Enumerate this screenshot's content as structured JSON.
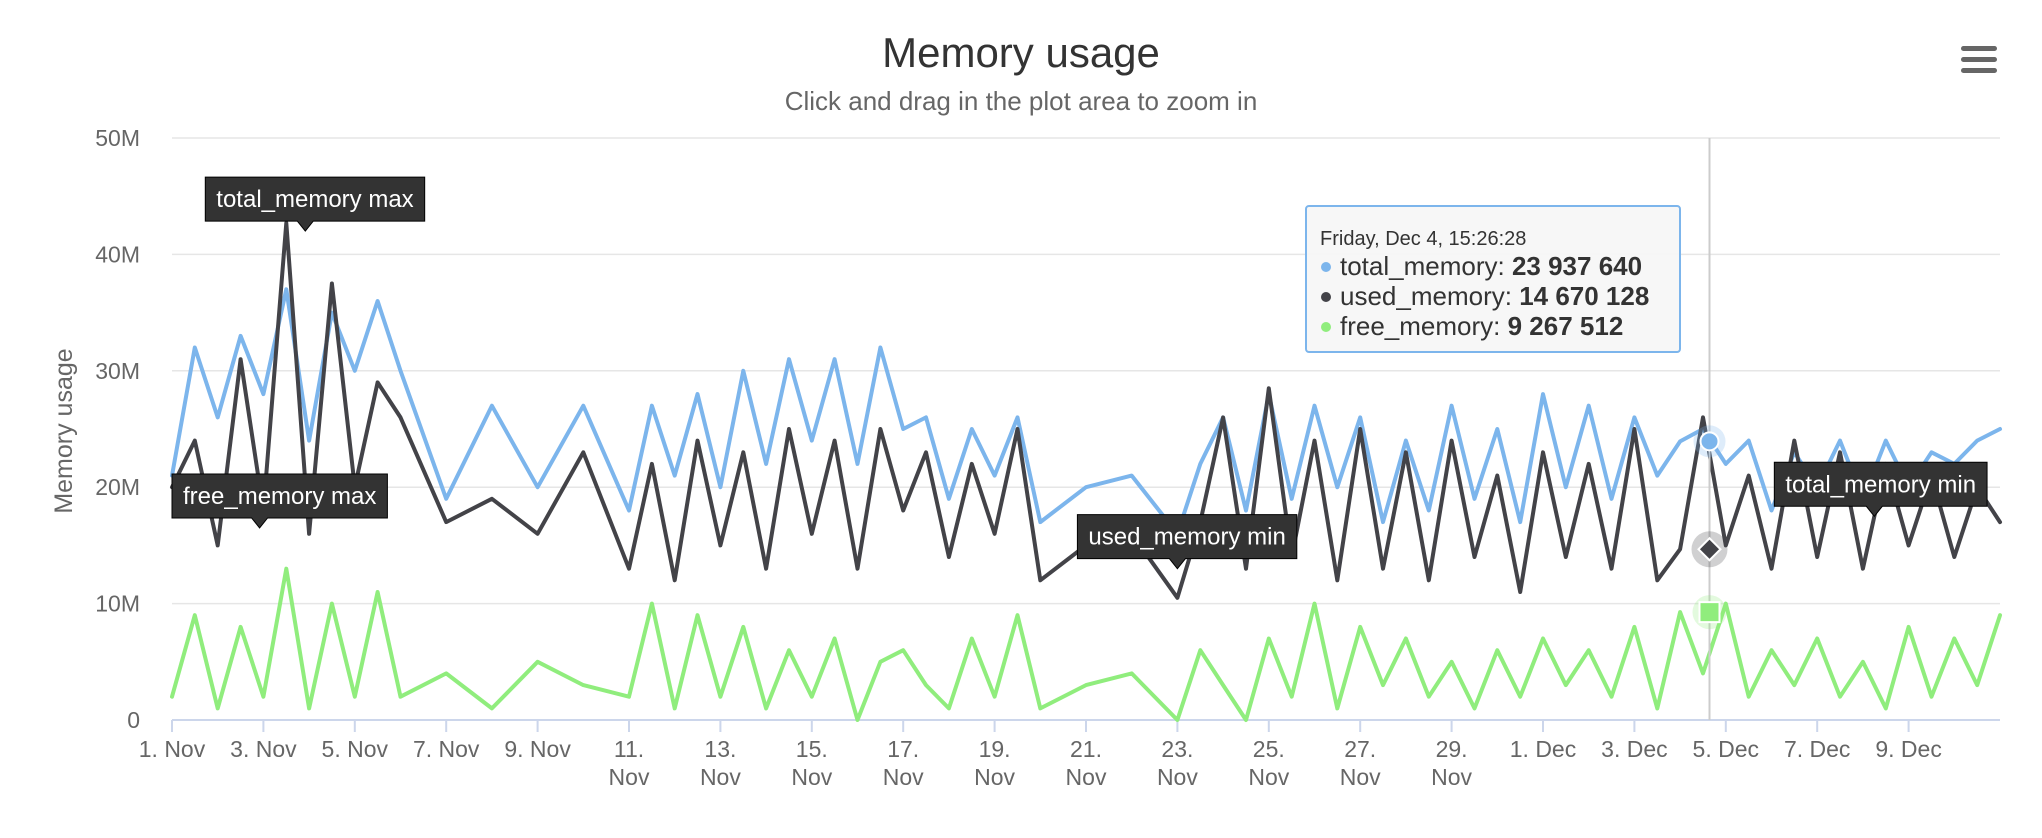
{
  "chart_data": {
    "type": "line",
    "title": "Memory usage",
    "subtitle": "Click and drag in the plot area to zoom in",
    "ylabel": "Memory usage",
    "xlabel": "",
    "ylim": [
      0,
      50000000
    ],
    "xlim": [
      "2020-11-01",
      "2020-12-11"
    ],
    "grid": true,
    "y_ticks": [
      "0",
      "10M",
      "20M",
      "30M",
      "40M",
      "50M"
    ],
    "x_ticks": [
      [
        "1. Nov"
      ],
      [
        "3. Nov"
      ],
      [
        "5. Nov"
      ],
      [
        "7. Nov"
      ],
      [
        "9. Nov"
      ],
      [
        "11.",
        "Nov"
      ],
      [
        "13.",
        "Nov"
      ],
      [
        "15.",
        "Nov"
      ],
      [
        "17.",
        "Nov"
      ],
      [
        "19.",
        "Nov"
      ],
      [
        "21.",
        "Nov"
      ],
      [
        "23.",
        "Nov"
      ],
      [
        "25.",
        "Nov"
      ],
      [
        "27.",
        "Nov"
      ],
      [
        "29.",
        "Nov"
      ],
      [
        "1. Dec"
      ],
      [
        "3. Dec"
      ],
      [
        "5. Dec"
      ],
      [
        "7. Dec"
      ],
      [
        "9. Dec"
      ]
    ],
    "series": [
      {
        "name": "total_memory",
        "color": "#7cb5ec",
        "x": [
          "2020-11-01",
          "2020-11-01 12:00",
          "2020-11-02",
          "2020-11-02 12:00",
          "2020-11-03",
          "2020-11-03 12:00",
          "2020-11-04",
          "2020-11-04 12:00",
          "2020-11-05",
          "2020-11-05 12:00",
          "2020-11-06",
          "2020-11-07",
          "2020-11-08",
          "2020-11-09",
          "2020-11-10",
          "2020-11-11",
          "2020-11-11 12:00",
          "2020-11-12",
          "2020-11-12 12:00",
          "2020-11-13",
          "2020-11-13 12:00",
          "2020-11-14",
          "2020-11-14 12:00",
          "2020-11-15",
          "2020-11-15 12:00",
          "2020-11-16",
          "2020-11-16 12:00",
          "2020-11-17",
          "2020-11-17 12:00",
          "2020-11-18",
          "2020-11-18 12:00",
          "2020-11-19",
          "2020-11-19 12:00",
          "2020-11-20",
          "2020-11-21",
          "2020-11-22",
          "2020-11-23",
          "2020-11-23 12:00",
          "2020-11-24",
          "2020-11-24 12:00",
          "2020-11-25",
          "2020-11-25 12:00",
          "2020-11-26",
          "2020-11-26 12:00",
          "2020-11-27",
          "2020-11-27 12:00",
          "2020-11-28",
          "2020-11-28 12:00",
          "2020-11-29",
          "2020-11-29 12:00",
          "2020-11-30",
          "2020-11-30 12:00",
          "2020-12-01",
          "2020-12-01 12:00",
          "2020-12-02",
          "2020-12-02 12:00",
          "2020-12-03",
          "2020-12-03 12:00",
          "2020-12-04",
          "2020-12-04 12:00",
          "2020-12-05",
          "2020-12-05 12:00",
          "2020-12-06",
          "2020-12-06 12:00",
          "2020-12-07",
          "2020-12-07 12:00",
          "2020-12-08",
          "2020-12-08 12:00",
          "2020-12-09",
          "2020-12-09 12:00",
          "2020-12-10",
          "2020-12-10 12:00",
          "2020-12-11"
        ],
        "values": [
          21000000,
          32000000,
          26000000,
          33000000,
          28000000,
          37000000,
          24000000,
          35000000,
          30000000,
          36000000,
          30000000,
          19000000,
          27000000,
          20000000,
          27000000,
          18000000,
          27000000,
          21000000,
          28000000,
          20000000,
          30000000,
          22000000,
          31000000,
          24000000,
          31000000,
          22000000,
          32000000,
          25000000,
          26000000,
          19000000,
          25000000,
          21000000,
          26000000,
          17000000,
          20000000,
          21000000,
          16000000,
          22000000,
          26000000,
          18000000,
          28000000,
          19000000,
          27000000,
          20000000,
          26000000,
          17000000,
          24000000,
          18000000,
          27000000,
          19000000,
          25000000,
          17000000,
          28000000,
          20000000,
          27000000,
          19000000,
          26000000,
          21000000,
          23937640,
          25000000,
          22000000,
          24000000,
          18000000,
          23000000,
          20000000,
          24000000,
          19000000,
          24000000,
          20000000,
          23000000,
          22000000,
          24000000,
          25000000
        ]
      },
      {
        "name": "used_memory",
        "color": "#434348",
        "x": [
          "2020-11-01",
          "2020-11-01 12:00",
          "2020-11-02",
          "2020-11-02 12:00",
          "2020-11-03",
          "2020-11-03 12:00",
          "2020-11-04",
          "2020-11-04 12:00",
          "2020-11-05",
          "2020-11-05 12:00",
          "2020-11-06",
          "2020-11-07",
          "2020-11-08",
          "2020-11-09",
          "2020-11-10",
          "2020-11-11",
          "2020-11-11 12:00",
          "2020-11-12",
          "2020-11-12 12:00",
          "2020-11-13",
          "2020-11-13 12:00",
          "2020-11-14",
          "2020-11-14 12:00",
          "2020-11-15",
          "2020-11-15 12:00",
          "2020-11-16",
          "2020-11-16 12:00",
          "2020-11-17",
          "2020-11-17 12:00",
          "2020-11-18",
          "2020-11-18 12:00",
          "2020-11-19",
          "2020-11-19 12:00",
          "2020-11-20",
          "2020-11-21",
          "2020-11-22",
          "2020-11-23",
          "2020-11-23 12:00",
          "2020-11-24",
          "2020-11-24 12:00",
          "2020-11-25",
          "2020-11-25 12:00",
          "2020-11-26",
          "2020-11-26 12:00",
          "2020-11-27",
          "2020-11-27 12:00",
          "2020-11-28",
          "2020-11-28 12:00",
          "2020-11-29",
          "2020-11-29 12:00",
          "2020-11-30",
          "2020-11-30 12:00",
          "2020-12-01",
          "2020-12-01 12:00",
          "2020-12-02",
          "2020-12-02 12:00",
          "2020-12-03",
          "2020-12-03 12:00",
          "2020-12-04",
          "2020-12-04 12:00",
          "2020-12-05",
          "2020-12-05 12:00",
          "2020-12-06",
          "2020-12-06 12:00",
          "2020-12-07",
          "2020-12-07 12:00",
          "2020-12-08",
          "2020-12-08 12:00",
          "2020-12-09",
          "2020-12-09 12:00",
          "2020-12-10",
          "2020-12-10 12:00",
          "2020-12-11"
        ],
        "values": [
          20000000,
          24000000,
          15000000,
          31000000,
          18000000,
          42700000,
          16000000,
          37500000,
          20000000,
          29000000,
          26000000,
          17000000,
          19000000,
          16000000,
          23000000,
          13000000,
          22000000,
          12000000,
          24000000,
          15000000,
          23000000,
          13000000,
          25000000,
          16000000,
          24000000,
          13000000,
          25000000,
          18000000,
          23000000,
          14000000,
          22000000,
          16000000,
          25000000,
          12000000,
          15000000,
          16000000,
          10500000,
          17000000,
          26000000,
          13000000,
          28500000,
          14000000,
          24000000,
          12000000,
          25000000,
          13000000,
          23000000,
          12000000,
          24000000,
          14000000,
          21000000,
          11000000,
          23000000,
          14000000,
          22000000,
          13000000,
          25000000,
          12000000,
          14670128,
          26000000,
          15000000,
          21000000,
          13000000,
          24000000,
          14000000,
          23000000,
          13000000,
          22000000,
          15000000,
          21000000,
          14000000,
          20000000,
          17000000
        ]
      },
      {
        "name": "free_memory",
        "color": "#90ed7d",
        "x": [
          "2020-11-01",
          "2020-11-01 12:00",
          "2020-11-02",
          "2020-11-02 12:00",
          "2020-11-03",
          "2020-11-03 12:00",
          "2020-11-04",
          "2020-11-04 12:00",
          "2020-11-05",
          "2020-11-05 12:00",
          "2020-11-06",
          "2020-11-07",
          "2020-11-08",
          "2020-11-09",
          "2020-11-10",
          "2020-11-11",
          "2020-11-11 12:00",
          "2020-11-12",
          "2020-11-12 12:00",
          "2020-11-13",
          "2020-11-13 12:00",
          "2020-11-14",
          "2020-11-14 12:00",
          "2020-11-15",
          "2020-11-15 12:00",
          "2020-11-16",
          "2020-11-16 12:00",
          "2020-11-17",
          "2020-11-17 12:00",
          "2020-11-18",
          "2020-11-18 12:00",
          "2020-11-19",
          "2020-11-19 12:00",
          "2020-11-20",
          "2020-11-21",
          "2020-11-22",
          "2020-11-23",
          "2020-11-23 12:00",
          "2020-11-24",
          "2020-11-24 12:00",
          "2020-11-25",
          "2020-11-25 12:00",
          "2020-11-26",
          "2020-11-26 12:00",
          "2020-11-27",
          "2020-11-27 12:00",
          "2020-11-28",
          "2020-11-28 12:00",
          "2020-11-29",
          "2020-11-29 12:00",
          "2020-11-30",
          "2020-11-30 12:00",
          "2020-12-01",
          "2020-12-01 12:00",
          "2020-12-02",
          "2020-12-02 12:00",
          "2020-12-03",
          "2020-12-03 12:00",
          "2020-12-04",
          "2020-12-04 12:00",
          "2020-12-05",
          "2020-12-05 12:00",
          "2020-12-06",
          "2020-12-06 12:00",
          "2020-12-07",
          "2020-12-07 12:00",
          "2020-12-08",
          "2020-12-08 12:00",
          "2020-12-09",
          "2020-12-09 12:00",
          "2020-12-10",
          "2020-12-10 12:00",
          "2020-12-11"
        ],
        "values": [
          2000000,
          9000000,
          1000000,
          8000000,
          2000000,
          13000000,
          1000000,
          10000000,
          2000000,
          11000000,
          2000000,
          4000000,
          1000000,
          5000000,
          3000000,
          2000000,
          10000000,
          1000000,
          9000000,
          2000000,
          8000000,
          1000000,
          6000000,
          2000000,
          7000000,
          0,
          5000000,
          6000000,
          3000000,
          1000000,
          7000000,
          2000000,
          9000000,
          1000000,
          3000000,
          4000000,
          0,
          6000000,
          3000000,
          0,
          7000000,
          2000000,
          10000000,
          1000000,
          8000000,
          3000000,
          7000000,
          2000000,
          5000000,
          1000000,
          6000000,
          2000000,
          7000000,
          3000000,
          6000000,
          2000000,
          8000000,
          1000000,
          9267512,
          4000000,
          10000000,
          2000000,
          6000000,
          3000000,
          7000000,
          2000000,
          5000000,
          1000000,
          8000000,
          2000000,
          7000000,
          3000000,
          9000000
        ]
      }
    ],
    "flags": [
      {
        "text": "total_memory max",
        "x": "2020-11-03 22:00",
        "y": 42000000,
        "series": "used_memory"
      },
      {
        "text": "free_memory max",
        "x": "2020-11-02 22:00",
        "y": 16500000,
        "series": "used_memory"
      },
      {
        "text": "used_memory min",
        "x": "2020-11-23",
        "y": 13000000,
        "series": "used_memory"
      },
      {
        "text": "total_memory min",
        "x": "2020-12-08 06:00",
        "y": 17500000,
        "series": "used_memory"
      }
    ],
    "hover": {
      "x": "2020-12-04 15:26:28",
      "date_label": "Friday, Dec 4, 15:26:28",
      "rows": [
        {
          "name": "total_memory",
          "value": "23 937 640",
          "y": 23937640,
          "color": "#7cb5ec"
        },
        {
          "name": "used_memory",
          "value": "14 670 128",
          "y": 14670128,
          "color": "#434348"
        },
        {
          "name": "free_memory",
          "value": "9 267 512",
          "y": 9267512,
          "color": "#90ed7d"
        }
      ]
    }
  },
  "colors": {
    "grid": "#e6e6e6",
    "axis": "#ccd6eb",
    "flag_bg": "#333333",
    "tooltip_border": "#7cb5ec"
  },
  "menu": {
    "icon": "hamburger-menu-icon"
  }
}
